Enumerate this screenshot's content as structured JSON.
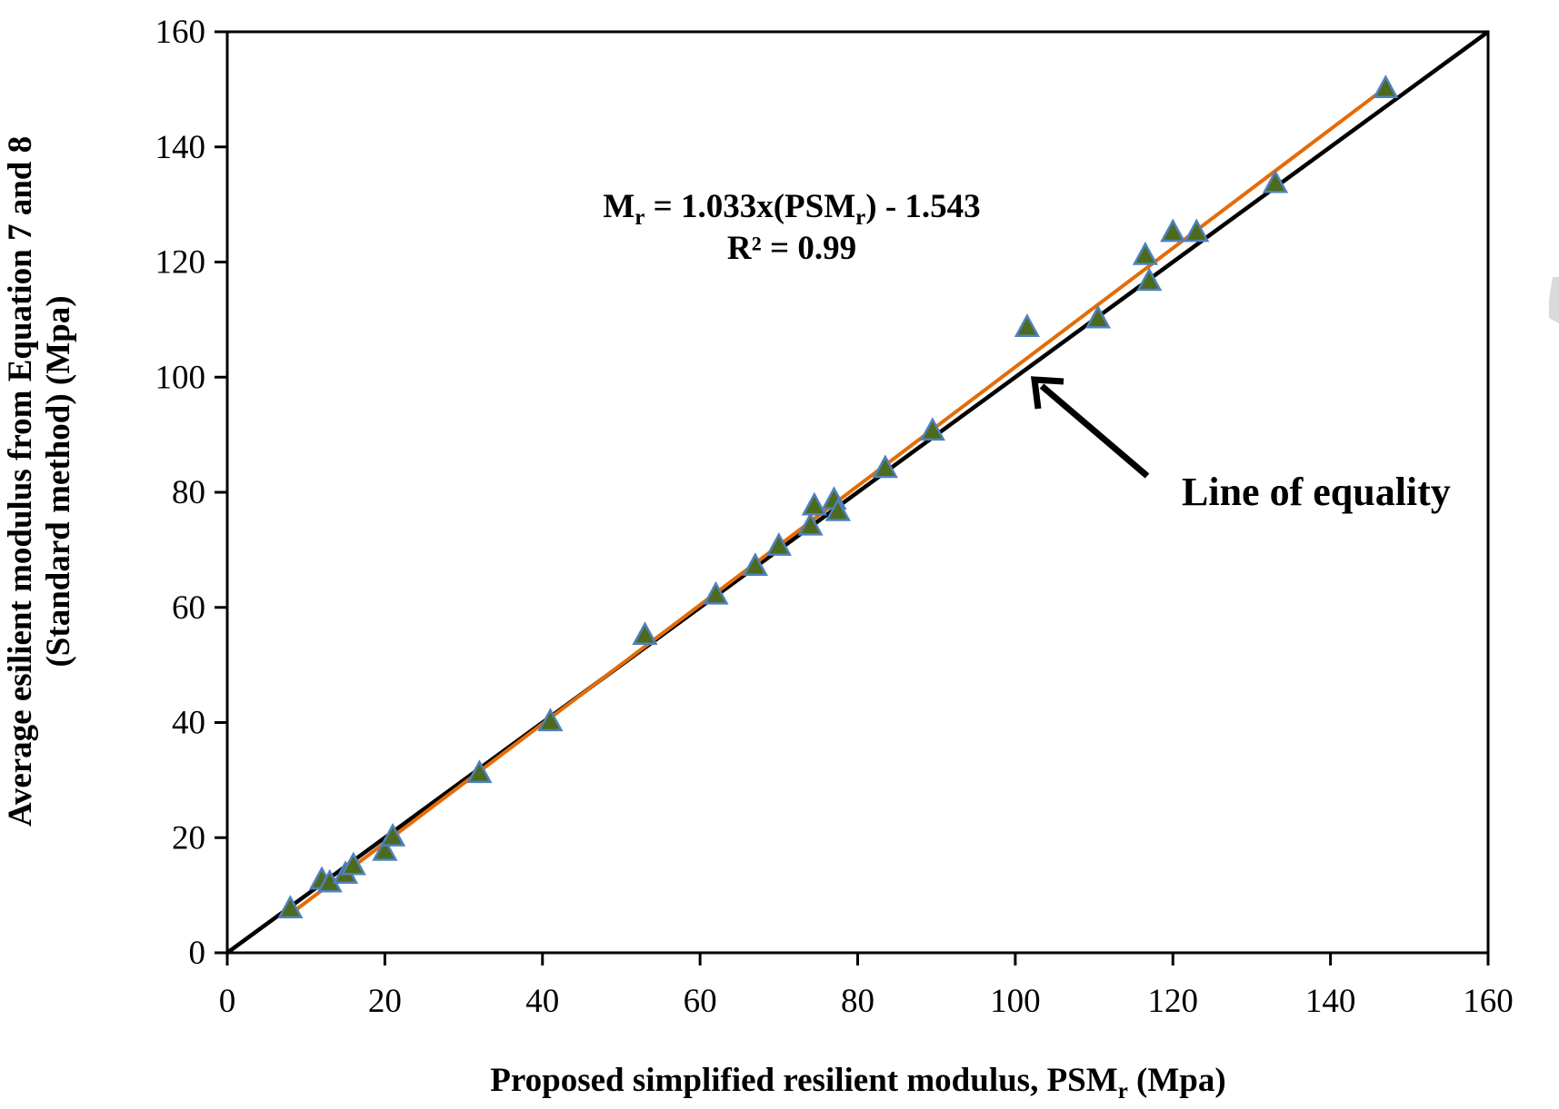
{
  "chart_data": {
    "type": "scatter",
    "xlabel": {
      "main": "Proposed simplified resilient modulus, PSM",
      "sub": "r",
      "tail": " (Mpa)"
    },
    "ylabel": {
      "line1": "Average esilient modulus from Equation 7 and 8",
      "line2": "(Standard method) (Mpa)"
    },
    "xlim": [
      0,
      160
    ],
    "ylim": [
      0,
      160
    ],
    "xticks": [
      0,
      20,
      40,
      60,
      80,
      100,
      120,
      140,
      160
    ],
    "yticks": [
      0,
      20,
      40,
      60,
      80,
      100,
      120,
      140,
      160
    ],
    "grid": false,
    "series": [
      {
        "marker": "triangle",
        "marker_fill": "#4d6b1e",
        "marker_edge": "#4f81bd",
        "points": [
          [
            8.0,
            7.5
          ],
          [
            12.0,
            12.5
          ],
          [
            13.0,
            12.0
          ],
          [
            15.0,
            13.5
          ],
          [
            16.0,
            15.0
          ],
          [
            20.0,
            17.5
          ],
          [
            21.0,
            20.0
          ],
          [
            32.0,
            31.0
          ],
          [
            41.0,
            40.0
          ],
          [
            53.0,
            55.0
          ],
          [
            62.0,
            62.0
          ],
          [
            67.0,
            67.0
          ],
          [
            70.0,
            70.5
          ],
          [
            74.0,
            74.0
          ],
          [
            74.5,
            77.5
          ],
          [
            77.0,
            78.5
          ],
          [
            77.5,
            76.5
          ],
          [
            83.5,
            84.0
          ],
          [
            89.5,
            90.5
          ],
          [
            101.5,
            108.5
          ],
          [
            110.5,
            110.0
          ],
          [
            116.5,
            121.0
          ],
          [
            117.0,
            116.5
          ],
          [
            120.0,
            125.0
          ],
          [
            123.0,
            125.0
          ],
          [
            133.0,
            133.5
          ],
          [
            147.0,
            150.0
          ]
        ]
      }
    ],
    "trendline": {
      "slope": 1.033,
      "intercept": -1.543,
      "x_range": [
        8,
        147
      ],
      "color": "#e36c0a"
    },
    "equality_line": {
      "x_range": [
        0,
        160
      ],
      "color": "#000000"
    },
    "annotations": {
      "equation": {
        "prefix": "M",
        "sub1": "r",
        "middle": " = 1.033x(PSM",
        "sub2": "r",
        "suffix": ") - 1.543"
      },
      "r_squared": "R² = 0.99",
      "line_of_equality": "Line of equality"
    }
  }
}
